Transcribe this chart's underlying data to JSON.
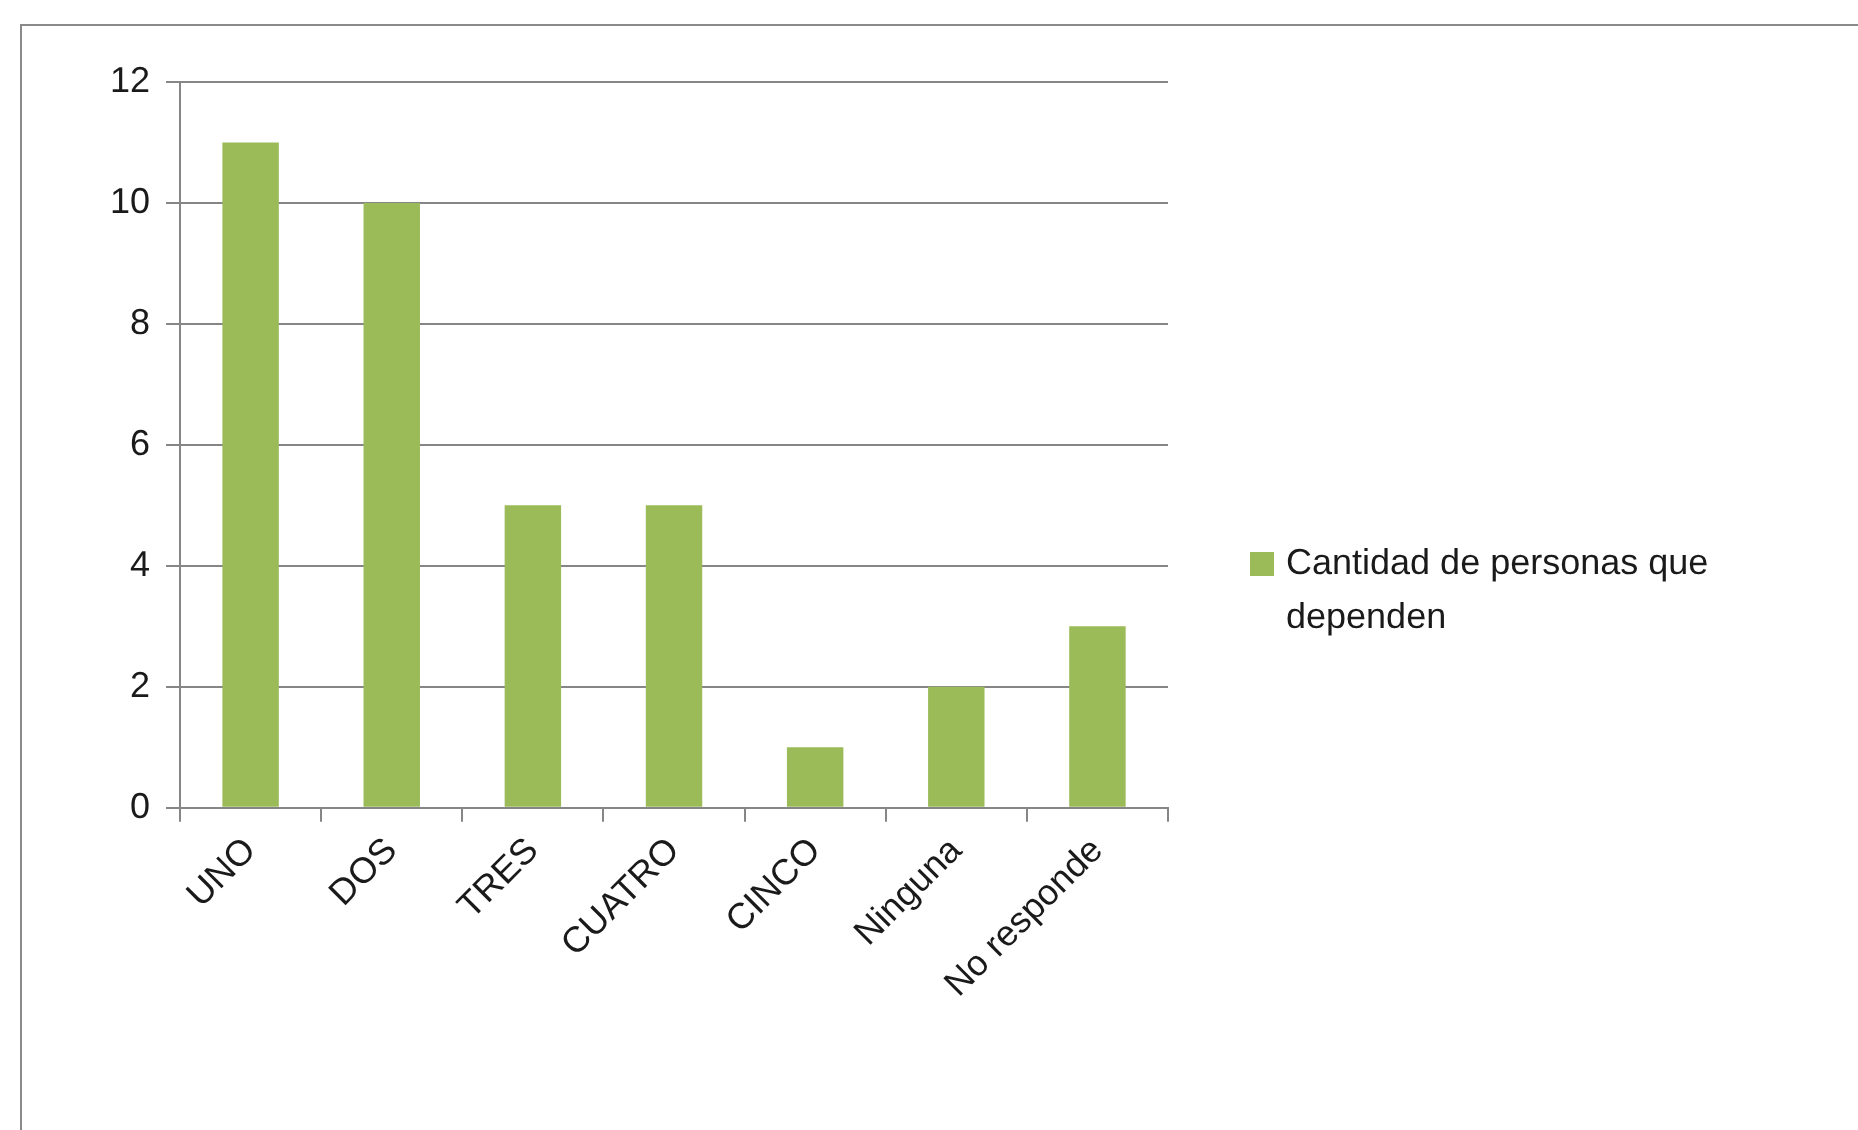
{
  "chart_data": {
    "type": "bar",
    "categories": [
      "UNO",
      "DOS",
      "TRES",
      "CUATRO",
      "CINCO",
      "Ninguna",
      "No responde"
    ],
    "series": [
      {
        "name": "Cantidad de personas que dependen",
        "color": "#9bbb59",
        "values": [
          11,
          10,
          5,
          5,
          1,
          2,
          3
        ]
      }
    ],
    "ylim": [
      0,
      12
    ],
    "yticks": [
      0,
      2,
      4,
      6,
      8,
      10,
      12
    ],
    "grid": "y",
    "legend": "right"
  }
}
